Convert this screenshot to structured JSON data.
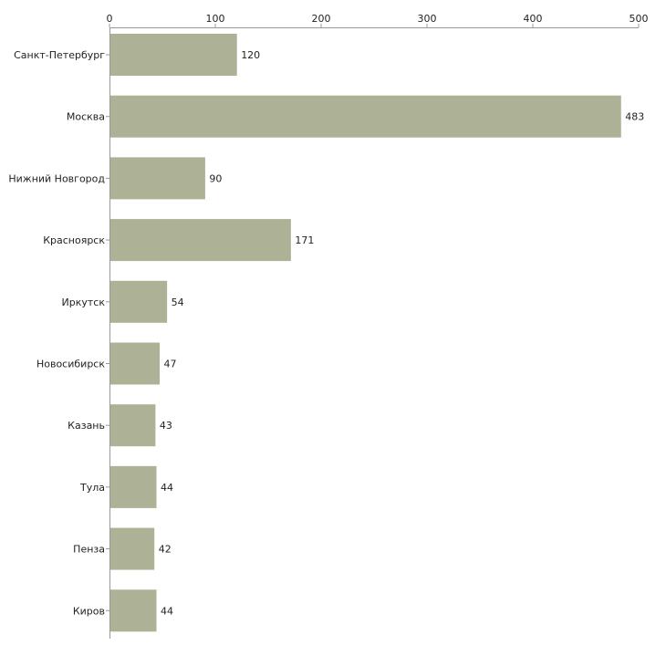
{
  "colors": {
    "bar": "#adb196",
    "axis": "#999999",
    "text": "#222222",
    "background": "#ffffff"
  },
  "chart_data": {
    "type": "bar",
    "orientation": "horizontal",
    "title": "",
    "xlabel": "",
    "ylabel": "",
    "xlim": [
      0,
      500
    ],
    "x_ticks": [
      0,
      100,
      200,
      300,
      400,
      500
    ],
    "x_axis_position": "top",
    "grid": false,
    "categories": [
      "Санкт-Петербург",
      "Москва",
      "Нижний Новгород",
      "Красноярск",
      "Иркутск",
      "Новосибирск",
      "Казань",
      "Тула",
      "Пенза",
      "Киров"
    ],
    "values": [
      120,
      483,
      90,
      171,
      54,
      47,
      43,
      44,
      42,
      44
    ],
    "data_labels": true
  }
}
